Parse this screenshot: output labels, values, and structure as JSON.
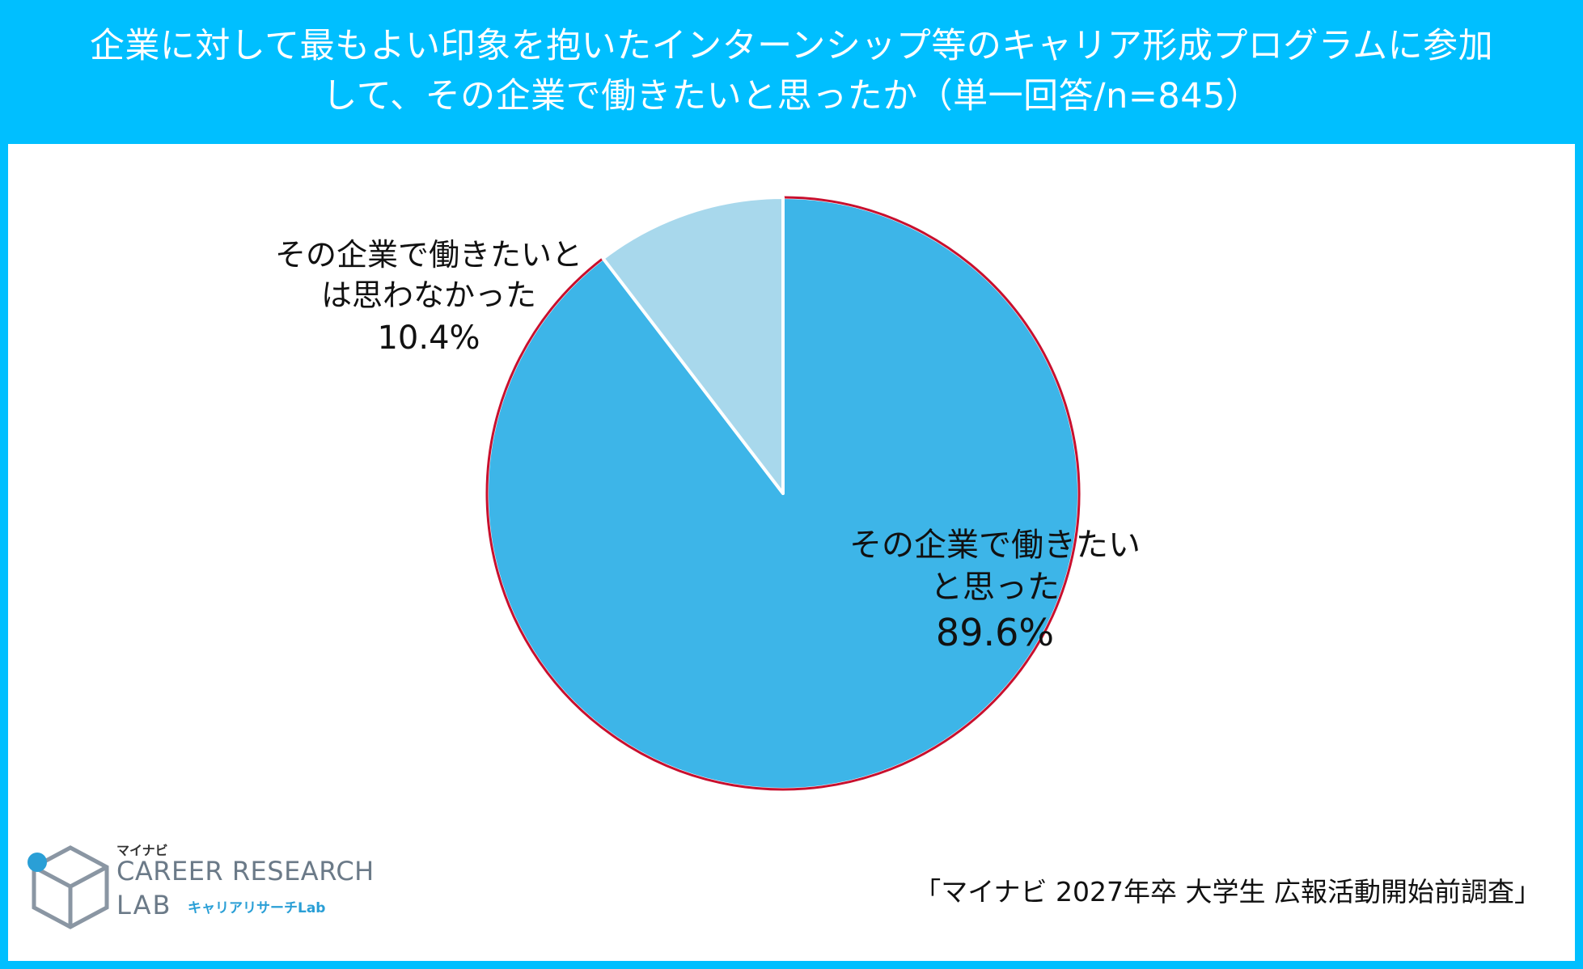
{
  "header": {
    "title_line1": "企業に対して最もよい印象を抱いたインターンシップ等のキャリア形成プログラムに参加",
    "title_line2": "して、その企業で働きたいと思ったか（単一回答/n=845）"
  },
  "chart_data": {
    "type": "pie",
    "title": "企業に対して最もよい印象を抱いたインターンシップ等のキャリア形成プログラムに参加して、その企業で働きたいと思ったか（単一回答/n=845）",
    "slices": [
      {
        "label_line1": "その企業で働きたい",
        "label_line2": "と思った",
        "value": 89.6,
        "value_text": "89.6%",
        "color": "#3DB5E8",
        "edge_color": "#C8102E"
      },
      {
        "label_line1": "その企業で働きたいと",
        "label_line2": "は思わなかった",
        "value": 10.4,
        "value_text": "10.4%",
        "color": "#A8D8EC"
      }
    ]
  },
  "footer": {
    "source": "「マイナビ 2027年卒 大学生 広報活動開始前調査」",
    "logo": {
      "brand_top": "マイナビ",
      "line1": "CAREER RESEARCH",
      "line2": "LAB",
      "sub": "キャリアリサーチLab"
    }
  },
  "colors": {
    "frame": "#00BFFF",
    "panel": "#FFFFFF"
  }
}
